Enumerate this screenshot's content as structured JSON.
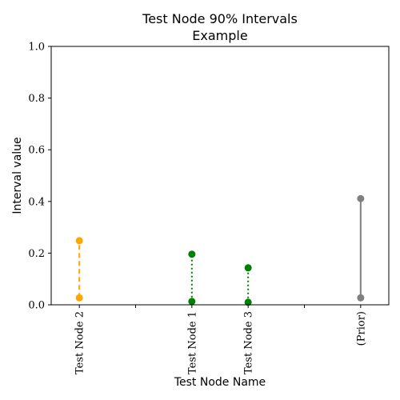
{
  "chart_data": {
    "type": "interval",
    "title_line1": "Test Node 90% Intervals",
    "title_line2": "Example",
    "xlabel": "Test Node Name",
    "ylabel": "Interval value",
    "ylim": [
      0,
      1.0
    ],
    "yticks": [
      {
        "value": 0.0,
        "label": "0.0"
      },
      {
        "value": 0.2,
        "label": "0.2"
      },
      {
        "value": 0.4,
        "label": "0.4"
      },
      {
        "value": 0.6,
        "label": "0.6"
      },
      {
        "value": 0.8,
        "label": "0.8"
      },
      {
        "value": 1.0,
        "label": "1.0"
      }
    ],
    "categories": [
      "Test Node 2",
      "",
      "Test Node 1",
      "Test Node 3",
      "",
      "(Prior)"
    ],
    "intervals": [
      {
        "category": "Test Node 2",
        "lower": 0.027,
        "upper": 0.248,
        "color": "#FFA500",
        "line_style": "dashed"
      },
      {
        "category": "Test Node 1",
        "lower": 0.013,
        "upper": 0.196,
        "color": "#008000",
        "line_style": "dotted"
      },
      {
        "category": "Test Node 3",
        "lower": 0.01,
        "upper": 0.143,
        "color": "#008000",
        "line_style": "dotted"
      },
      {
        "category": "(Prior)",
        "lower": 0.027,
        "upper": 0.411,
        "color": "#808080",
        "line_style": "solid"
      }
    ],
    "grid": false,
    "legend": "none"
  }
}
